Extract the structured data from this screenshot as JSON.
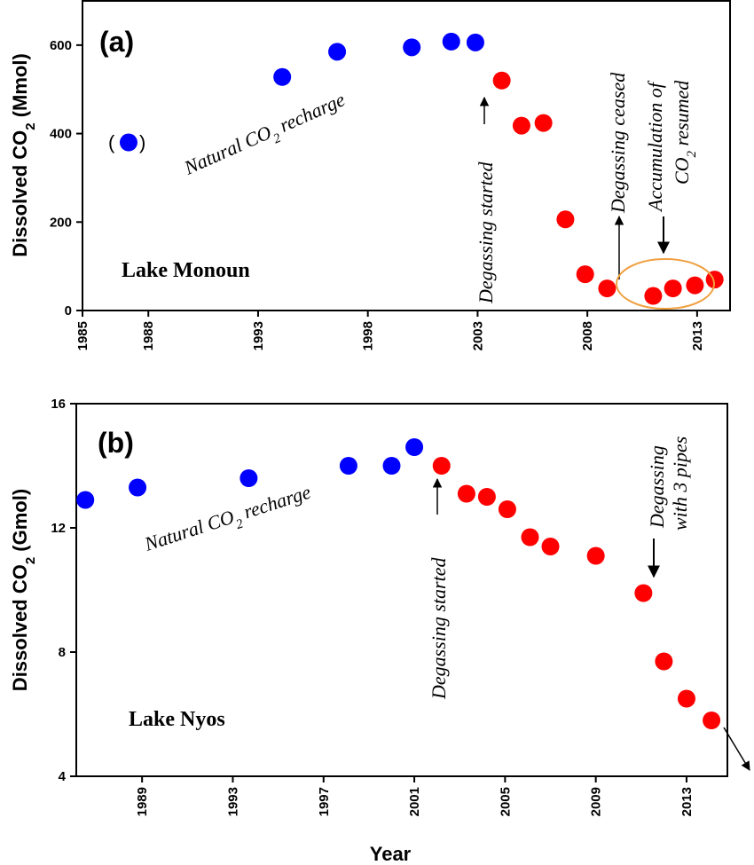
{
  "chart_data": [
    {
      "type": "scatter",
      "panel_label": "(a)",
      "lake": "Lake Monoun",
      "ylabel": "Dissolved CO",
      "ylabel_sub": "2",
      "ylabel_unit": " (Mmol)",
      "xlim": [
        1985,
        2014.5
      ],
      "ylim": [
        0,
        700
      ],
      "xticks": [
        1985,
        1988,
        1993,
        1998,
        2003,
        2008,
        2013
      ],
      "xtick_labels": [
        "1985",
        "1988",
        "1993",
        "1998",
        "2003",
        "2008",
        "2013"
      ],
      "yticks": [
        0,
        200,
        400,
        600
      ],
      "ytick_labels": [
        "0",
        "200",
        "400",
        "600"
      ],
      "series": [
        {
          "name": "Natural recharge",
          "color": "#0000ff",
          "x": [
            1987.1,
            1994.1,
            1996.6,
            2000.0,
            2001.8,
            2002.9
          ],
          "y": [
            380,
            528,
            585,
            595,
            608,
            606
          ]
        },
        {
          "name": "Degassing",
          "color": "#ff0000",
          "x": [
            2004.1,
            2005.0,
            2006.0,
            2007.0,
            2007.9,
            2008.9,
            2011.0,
            2011.9,
            2012.9,
            2013.8
          ],
          "y": [
            520,
            418,
            424,
            206,
            82,
            50,
            33,
            50,
            57,
            70
          ]
        }
      ],
      "parenthesized_point": {
        "open": "(",
        "close": ")"
      },
      "annotations": {
        "recharge_prefix": "Natural CO",
        "recharge_sub": "2",
        "recharge_suffix": " recharge",
        "degassing_started": "Degassing started",
        "degassing_ceased": "Degassing ceased",
        "accumulation_line1": "Accumulation of",
        "accumulation_line2_prefix": "CO",
        "accumulation_line2_sub": "2",
        "accumulation_line2_suffix": " resumed"
      },
      "highlight_color": "#f0a040"
    },
    {
      "type": "scatter",
      "panel_label": "(b)",
      "lake": "Lake Nyos",
      "xlabel": "Year",
      "ylabel": "Dissolved CO",
      "ylabel_sub": "2",
      "ylabel_unit": " (Gmol)",
      "xlim": [
        1986.1,
        2014.8
      ],
      "ylim": [
        4,
        16
      ],
      "xticks": [
        1989,
        1993,
        1997,
        2001,
        2005,
        2009,
        2013
      ],
      "xtick_labels": [
        "1989",
        "1993",
        "1997",
        "2001",
        "2005",
        "2009",
        "2013"
      ],
      "yticks": [
        4,
        8,
        12,
        16
      ],
      "ytick_labels": [
        "4",
        "8",
        "12",
        "16"
      ],
      "series": [
        {
          "name": "Natural recharge",
          "color": "#0000ff",
          "x": [
            1986.5,
            1988.8,
            1993.7,
            1998.1,
            2000.0,
            2001.0
          ],
          "y": [
            12.9,
            13.3,
            13.6,
            14.0,
            14.0,
            14.6
          ]
        },
        {
          "name": "Degassing",
          "color": "#ff0000",
          "x": [
            2002.2,
            2003.3,
            2004.2,
            2005.1,
            2006.1,
            2007.0,
            2009.0,
            2011.1,
            2012.0,
            2013.0,
            2014.1
          ],
          "y": [
            14.0,
            13.1,
            13.0,
            12.6,
            11.7,
            11.4,
            11.1,
            9.9,
            7.7,
            6.5,
            5.8
          ]
        }
      ],
      "annotations": {
        "recharge_prefix": "Natural CO",
        "recharge_sub": "2",
        "recharge_suffix": " recharge",
        "degassing_started": "Degassing started",
        "pipes_line1": "Degassing",
        "pipes_line2": "with 3 pipes"
      }
    }
  ]
}
